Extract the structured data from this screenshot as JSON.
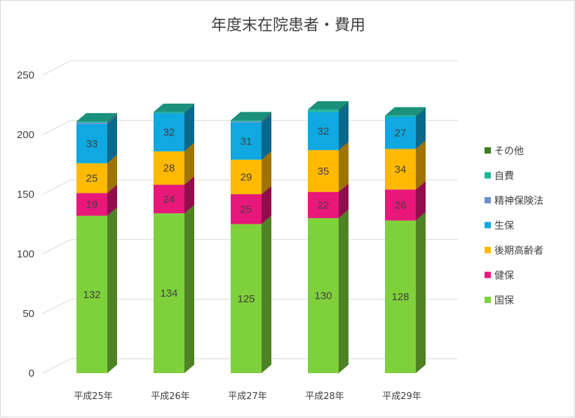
{
  "chart_data": {
    "type": "bar",
    "stacked": true,
    "style": "3d-column",
    "title": "年度末在院患者・費用",
    "categories": [
      "平成25年",
      "平成26年",
      "平成27年",
      "平成28年",
      "平成29年"
    ],
    "ylim": [
      0,
      250
    ],
    "yticks": [
      0,
      50,
      100,
      150,
      200,
      250
    ],
    "grid": true,
    "legend_position": "right",
    "series": [
      {
        "name": "国保",
        "color": "#7fd13b",
        "values": [
          132,
          134,
          125,
          130,
          128
        ],
        "labels": true
      },
      {
        "name": "健保",
        "color": "#e8177a",
        "values": [
          19,
          24,
          25,
          22,
          26
        ],
        "labels": true
      },
      {
        "name": "後期高齢者",
        "color": "#ffb900",
        "values": [
          25,
          28,
          29,
          35,
          34
        ],
        "labels": true
      },
      {
        "name": "生保",
        "color": "#0fa8e0",
        "values": [
          33,
          32,
          31,
          32,
          27
        ],
        "labels": true
      },
      {
        "name": "精神保険法",
        "color": "#6f8fcf",
        "values": [
          1,
          0,
          1,
          0,
          0
        ],
        "labels": false
      },
      {
        "name": "自費",
        "color": "#1fb59a",
        "values": [
          1,
          1,
          1,
          2,
          1
        ],
        "labels": false
      },
      {
        "name": "その他",
        "color": "#3e7d1f",
        "values": [
          0,
          0,
          0,
          0,
          0
        ],
        "labels": false
      }
    ]
  }
}
